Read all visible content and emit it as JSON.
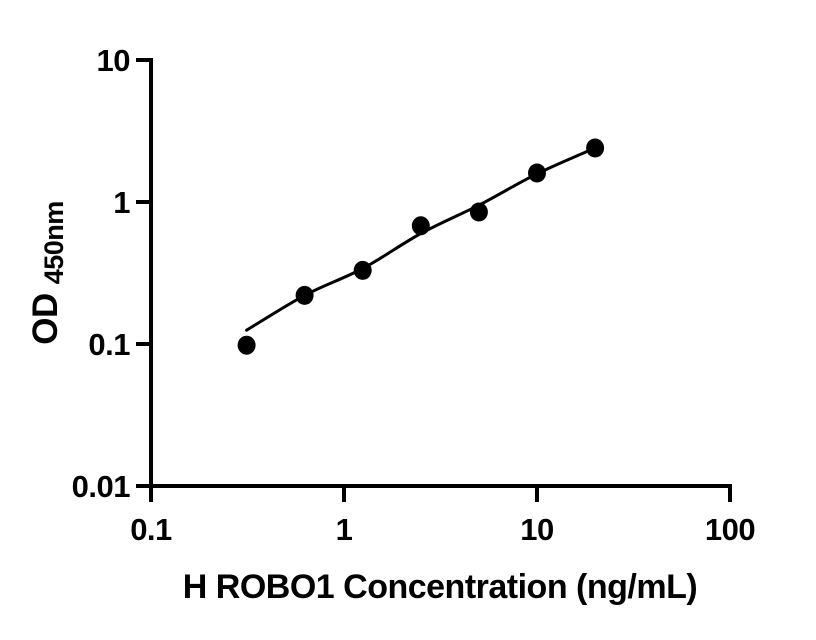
{
  "chart_data": {
    "type": "scatter",
    "title": "",
    "xlabel": "H ROBO1 Concentration (ng/mL)",
    "ylabel": "OD450nm",
    "ylabel_main": "OD",
    "ylabel_sub": "450nm",
    "xscale": "log",
    "yscale": "log",
    "xlim": [
      0.1,
      100
    ],
    "ylim": [
      0.01,
      10
    ],
    "xticks": {
      "values": [
        0.1,
        1,
        10,
        100
      ],
      "labels": [
        "0.1",
        "1",
        "10",
        "100"
      ]
    },
    "yticks": {
      "values": [
        0.01,
        0.1,
        1,
        10
      ],
      "labels": [
        "0.01",
        "0.1",
        "1",
        "10"
      ]
    },
    "grid": false,
    "legend": false,
    "series": [
      {
        "name": "standard-points",
        "type": "scatter",
        "marker": "filled-circle",
        "color": "#000000",
        "x": [
          0.313,
          0.625,
          1.25,
          2.5,
          5,
          10,
          20
        ],
        "y": [
          0.098,
          0.22,
          0.33,
          0.68,
          0.85,
          1.6,
          2.4
        ]
      },
      {
        "name": "fit-line",
        "type": "line",
        "color": "#000000",
        "x": [
          0.313,
          0.625,
          1.25,
          2.5,
          5,
          10,
          20
        ],
        "y": [
          0.125,
          0.22,
          0.34,
          0.6,
          0.95,
          1.58,
          2.4
        ]
      }
    ],
    "colors": {
      "axis": "#000000",
      "marker": "#000000",
      "line": "#000000",
      "background": "#ffffff"
    }
  }
}
